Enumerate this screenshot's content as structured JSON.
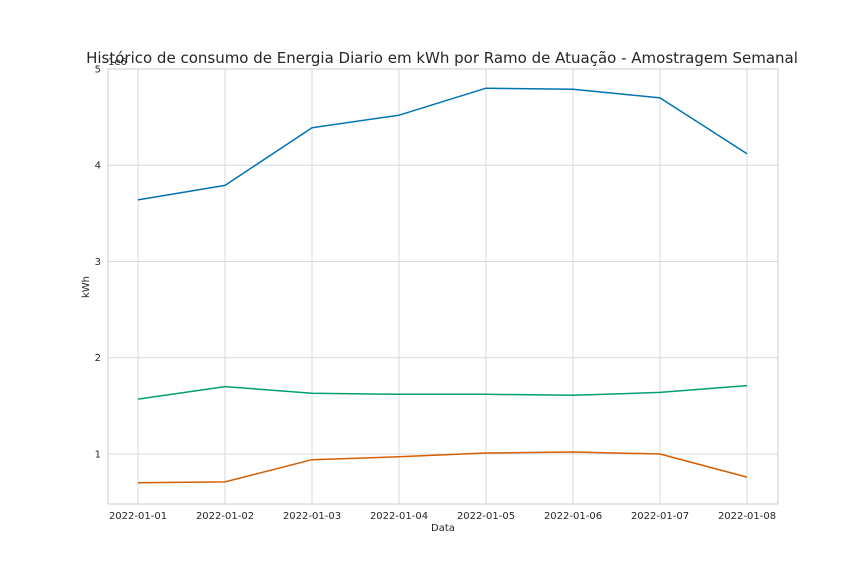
{
  "chart_data": {
    "type": "line",
    "title": "Histórico de consumo de Energia Diario em kWh por Ramo de Atuação - Amostragem Semanal",
    "xlabel": "Data",
    "ylabel": "kWh",
    "y_offset_label": "1e6",
    "x": [
      "2022-01-01",
      "2022-01-02",
      "2022-01-03",
      "2022-01-04",
      "2022-01-05",
      "2022-01-06",
      "2022-01-07",
      "2022-01-08"
    ],
    "y_ticks": [
      1,
      2,
      3,
      4,
      5
    ],
    "y_tick_labels": [
      "1",
      "2",
      "3",
      "4",
      "5"
    ],
    "ylim": [
      0.48,
      5.0
    ],
    "grid": true,
    "series": [
      {
        "color": "#0173b2",
        "values": [
          3.64,
          3.79,
          4.39,
          4.52,
          4.8,
          4.79,
          4.7,
          4.12
        ]
      },
      {
        "color": "#029e73",
        "values": [
          1.57,
          1.7,
          1.63,
          1.62,
          1.62,
          1.61,
          1.64,
          1.71
        ]
      },
      {
        "color": "#d55e00",
        "values": [
          0.7,
          0.71,
          0.94,
          0.97,
          1.01,
          1.02,
          1.0,
          0.76
        ]
      }
    ]
  }
}
